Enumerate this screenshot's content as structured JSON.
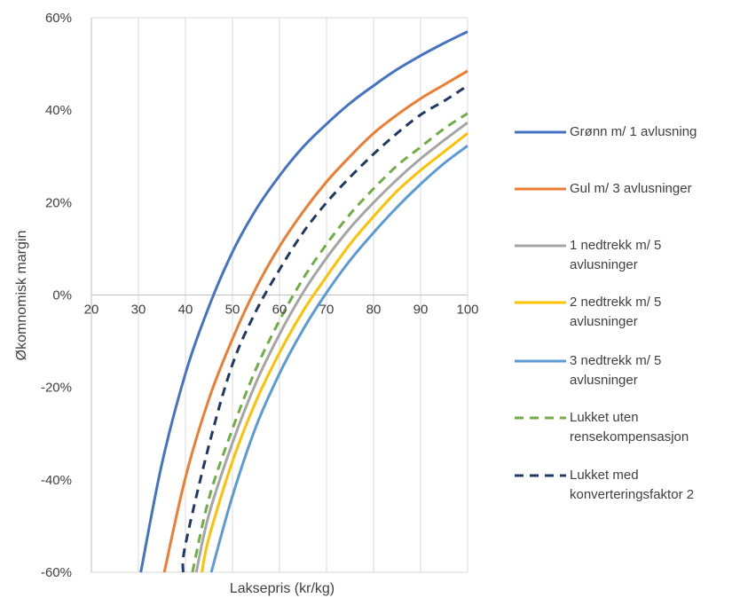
{
  "chart_data": {
    "type": "line",
    "xlabel": "Laksepris (kr/kg)",
    "ylabel": "Økomnomisk margin",
    "xlim": [
      20,
      100
    ],
    "ylim": [
      -60,
      60
    ],
    "x_ticks": [
      "20",
      "30",
      "40",
      "50",
      "60",
      "70",
      "80",
      "90",
      "100"
    ],
    "y_ticks": [
      "60%",
      "40%",
      "20%",
      "0%",
      "-20%",
      "-40%",
      "-60%"
    ],
    "grid": "vertical",
    "legend_position": "right",
    "series": [
      {
        "name": "Grønn m/ 1 avlusning",
        "color": "#4472C4",
        "dash": "solid",
        "x": [
          30.5,
          35,
          40,
          45,
          50,
          55,
          60,
          65,
          70,
          75,
          80,
          85,
          90,
          95,
          100
        ],
        "y": [
          -60,
          -36.5,
          -17,
          -2.5,
          9.3,
          18.5,
          25.8,
          32,
          37,
          41.5,
          45.3,
          48.8,
          51.8,
          54.5,
          57
        ]
      },
      {
        "name": "Gul m/ 3 avlusninger",
        "color": "#ED7D31",
        "dash": "solid",
        "x": [
          35.5,
          40,
          45,
          50,
          55,
          60,
          65,
          70,
          75,
          80,
          85,
          90,
          95,
          100
        ],
        "y": [
          -60,
          -39.5,
          -22.5,
          -9.5,
          1.5,
          10.5,
          18,
          24.5,
          30,
          35,
          39,
          42.5,
          45.5,
          48.5
        ]
      },
      {
        "name": "1 nedtrekk m/ 5 avlusninger",
        "color": "#A5A5A5",
        "dash": "solid",
        "x": [
          42.3,
          45,
          50,
          55,
          60,
          65,
          70,
          75,
          80,
          85,
          90,
          95,
          100
        ],
        "y": [
          -60,
          -47.5,
          -32,
          -19,
          -8.5,
          0.5,
          8,
          14.5,
          20,
          25,
          29.5,
          33.5,
          37.3
        ]
      },
      {
        "name": "2 nedtrekk m/ 5 avlusninger",
        "color": "#FFC000",
        "dash": "solid",
        "x": [
          43.5,
          45,
          50,
          55,
          60,
          65,
          70,
          75,
          80,
          85,
          90,
          95,
          100
        ],
        "y": [
          -60,
          -52.5,
          -36,
          -23,
          -12.5,
          -3.5,
          4,
          11,
          17,
          22.5,
          27,
          31,
          35
        ]
      },
      {
        "name": "3 nedtrekk m/ 5 avlusninger",
        "color": "#5B9BD5",
        "dash": "solid",
        "x": [
          45.5,
          50,
          55,
          60,
          65,
          70,
          75,
          80,
          85,
          90,
          95,
          100
        ],
        "y": [
          -60,
          -43.5,
          -28.5,
          -17,
          -7.5,
          0.5,
          7.5,
          13.5,
          19,
          24,
          28.5,
          32.3
        ]
      },
      {
        "name": "Lukket uten rensekompensasjon",
        "color": "#70AD47",
        "dash": "dashed",
        "x": [
          41.5,
          45,
          50,
          55,
          60,
          65,
          70,
          75,
          80,
          85,
          90,
          95,
          100
        ],
        "y": [
          -60,
          -44,
          -29,
          -16,
          -5.5,
          3.5,
          11,
          17.5,
          23,
          28,
          32,
          36,
          39.3
        ]
      },
      {
        "name": "Lukket med konverteringsfaktor 2",
        "color": "#203864",
        "dash": "dashed",
        "x": [
          39.5,
          40,
          45,
          50,
          55,
          60,
          65,
          70,
          75,
          80,
          85,
          90,
          95,
          100
        ],
        "y": [
          -60,
          -54,
          -32.5,
          -15,
          -3.5,
          5.5,
          13.5,
          20,
          25.5,
          30.5,
          35,
          39,
          42,
          45.3
        ]
      }
    ]
  }
}
